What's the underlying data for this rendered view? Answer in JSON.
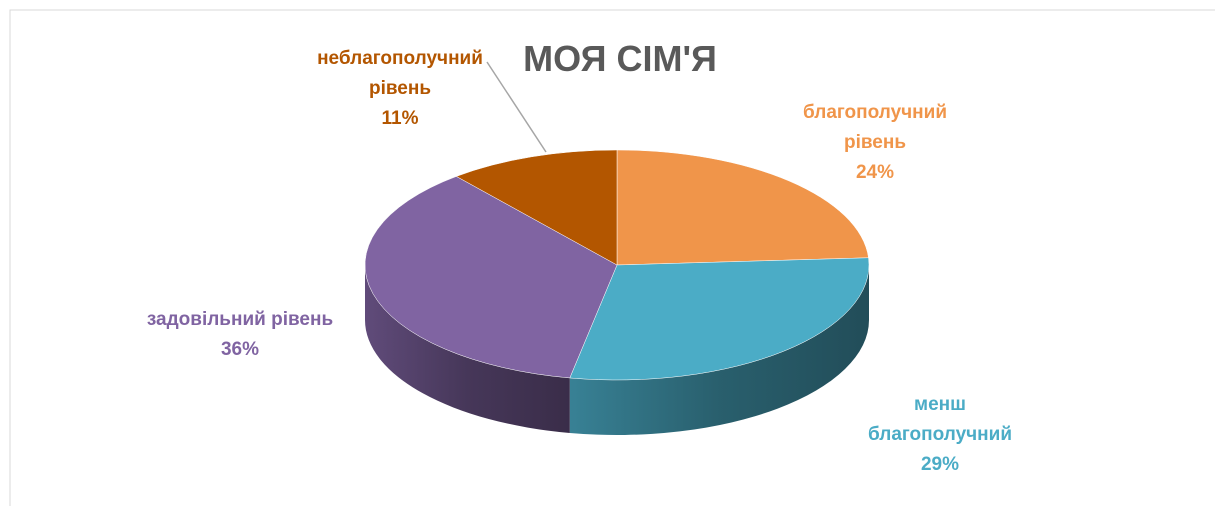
{
  "chart_data": {
    "type": "pie",
    "title": "МОЯ СІМ'Я",
    "categories": [
      "благополучний рівень",
      "менш благополучний",
      "задовільний рівень",
      "неблагополучний рівень"
    ],
    "values": [
      24,
      29,
      36,
      11
    ],
    "value_labels": [
      "24%",
      "29%",
      "36%",
      "11%"
    ],
    "colors": [
      "#f0954a",
      "#4bacc6",
      "#8064a2",
      "#b35600"
    ]
  }
}
